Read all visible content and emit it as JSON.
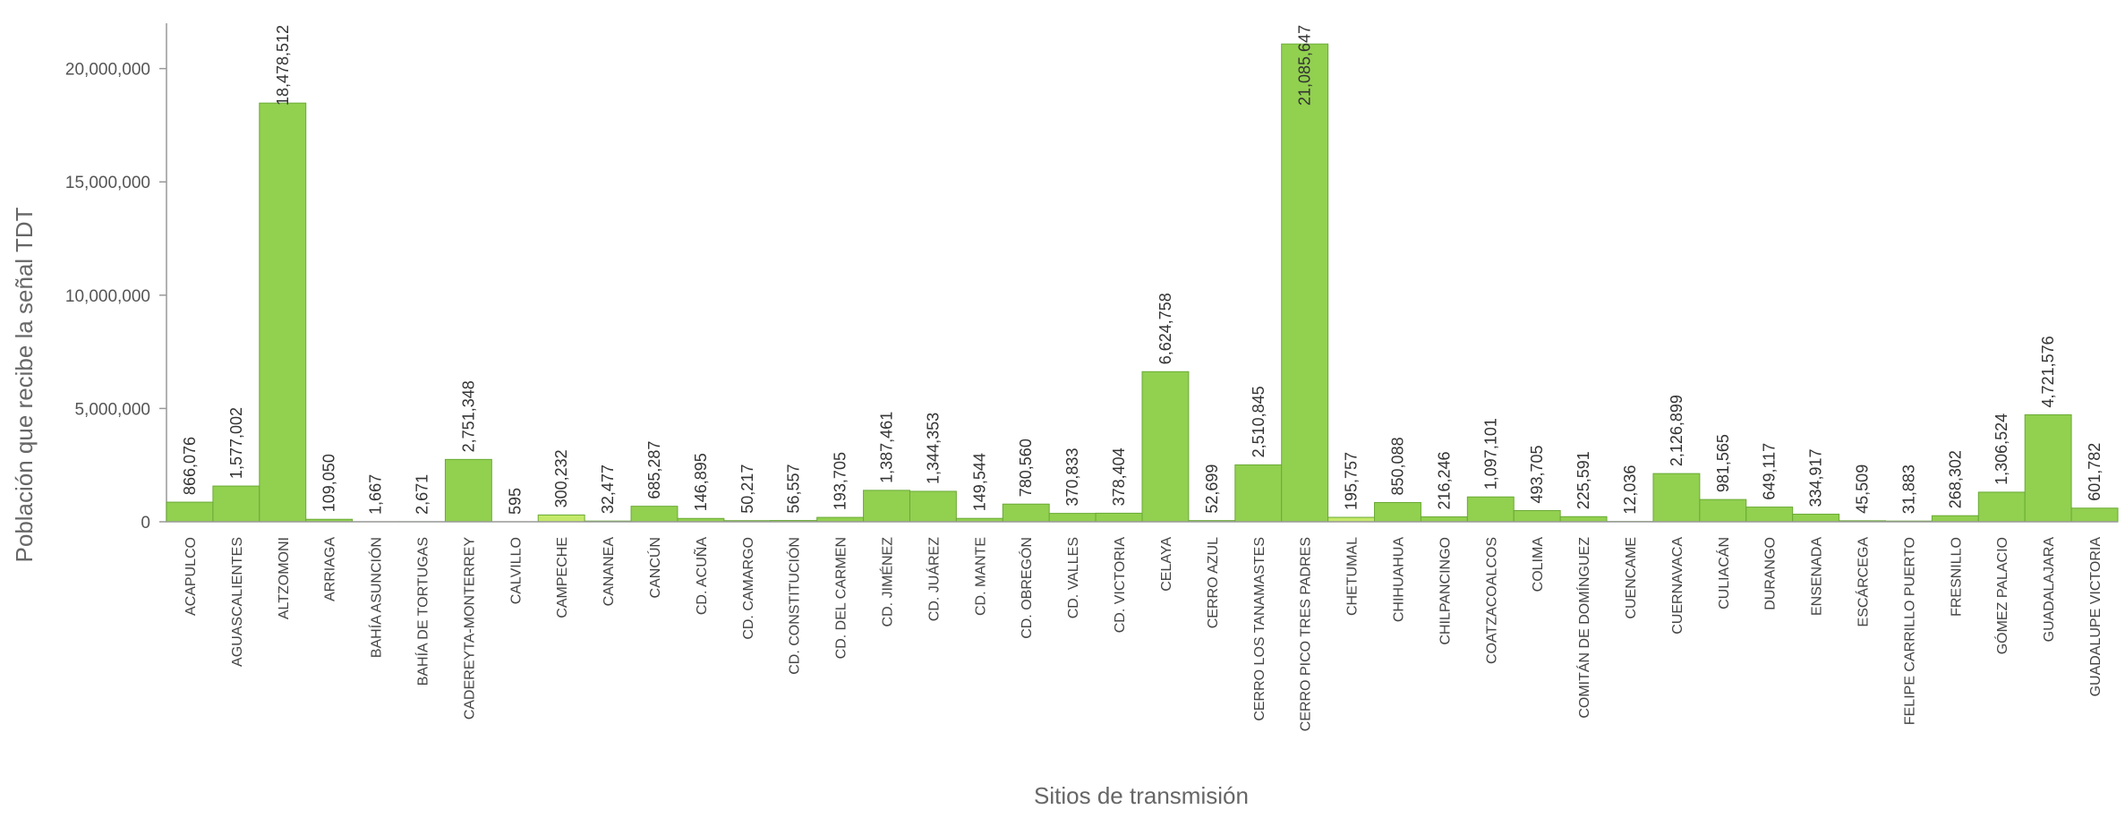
{
  "chart_data": {
    "type": "bar",
    "x_label": "Sitios de transmisión",
    "y_label": "Población que recibe la señal TDT",
    "categories": [
      "ACAPULCO",
      "AGUASCALIENTES",
      "ALTZOMONI",
      "ARRIAGA",
      "BAHÍA ASUNCIÓN",
      "BAHÍA DE TORTUGAS",
      "CADEREYTA-MONTERREY",
      "CALVILLO",
      "CAMPECHE",
      "CANANEA",
      "CANCÚN",
      "CD. ACUÑA",
      "CD. CAMARGO",
      "CD. CONSTITUCIÓN",
      "CD. DEL CARMEN",
      "CD. JIMÉNEZ",
      "CD. JUÁREZ",
      "CD. MANTE",
      "CD. OBREGÓN",
      "CD. VALLES",
      "CD. VICTORIA",
      "CELAYA",
      "CERRO AZUL",
      "CERRO LOS TANAMASTES",
      "CERRO PICO TRES PADRES",
      "CHETUMAL",
      "CHIHUAHUA",
      "CHILPANCINGO",
      "COATZACOALCOS",
      "COLIMA",
      "COMITÁN DE DOMÍNGUEZ",
      "CUENCAME",
      "CUERNAVACA",
      "CULIACÁN",
      "DURANGO",
      "ENSENADA",
      "ESCÁRCEGA",
      "FELIPE CARRILLO PUERTO",
      "FRESNILLO",
      "GÓMEZ PALACIO",
      "GUADALAJARA",
      "GUADALUPE VICTORIA"
    ],
    "values": [
      866076,
      1577002,
      18478512,
      109050,
      1667,
      2671,
      2751348,
      595,
      300232,
      32477,
      685287,
      146895,
      50217,
      56557,
      193705,
      1387461,
      1344353,
      149544,
      780560,
      370833,
      378404,
      6624758,
      52699,
      2510845,
      21085647,
      195757,
      850088,
      216246,
      1097101,
      493705,
      225591,
      12036,
      2126899,
      981565,
      649117,
      334917,
      45509,
      31883,
      268302,
      1306524,
      4721576,
      601782
    ],
    "value_labels": [
      "866,076",
      "1,577,002",
      "18,478,512",
      "109,050",
      "1,667",
      "2,671",
      "2,751,348",
      "595",
      "300,232",
      "32,477",
      "685,287",
      "146,895",
      "50,217",
      "56,557",
      "193,705",
      "1,387,461",
      "1,344,353",
      "149,544",
      "780,560",
      "370,833",
      "378,404",
      "6,624,758",
      "52,699",
      "2,510,845",
      "21,085,647",
      "195,757",
      "850,088",
      "216,246",
      "1,097,101",
      "493,705",
      "225,591",
      "12,036",
      "2,126,899",
      "981,565",
      "649,117",
      "334,917",
      "45,509",
      "31,883",
      "268,302",
      "1,306,524",
      "4,721,576",
      "601,782"
    ],
    "colors": [
      "#92d050",
      "#92d050",
      "#92d050",
      "#92d050",
      "#92d050",
      "#92d050",
      "#92d050",
      "#92d050",
      "#c4e86a",
      "#92d050",
      "#92d050",
      "#92d050",
      "#92d050",
      "#92d050",
      "#92d050",
      "#92d050",
      "#92d050",
      "#92d050",
      "#92d050",
      "#92d050",
      "#92d050",
      "#92d050",
      "#92d050",
      "#92d050",
      "#92d050",
      "#c4e86a",
      "#92d050",
      "#92d050",
      "#92d050",
      "#92d050",
      "#92d050",
      "#92d050",
      "#92d050",
      "#92d050",
      "#92d050",
      "#92d050",
      "#92d050",
      "#92d050",
      "#92d050",
      "#92d050",
      "#92d050",
      "#92d050"
    ],
    "ylim": [
      0,
      22000000
    ],
    "yticks": [
      0,
      {
        "value": 5000000,
        "label": "5,000,000"
      },
      {
        "value": 10000000,
        "label": "10,000,000"
      },
      {
        "value": 15000000,
        "label": "15,000,000"
      },
      {
        "value": 20000000,
        "label": "20,000,000"
      }
    ]
  }
}
